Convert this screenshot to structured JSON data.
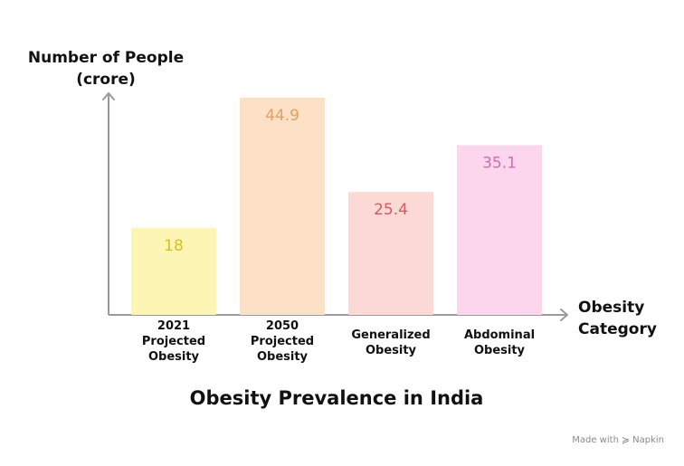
{
  "chart_data": {
    "type": "bar",
    "title": "Obesity Prevalence in India",
    "ylabel_lines": [
      "Number of People",
      "(crore)"
    ],
    "xlabel_lines": [
      "Obesity",
      "Category"
    ],
    "ylim": [
      0,
      50
    ],
    "grid": false,
    "legend": "none",
    "categories": [
      [
        "2021",
        "Projected",
        "Obesity"
      ],
      [
        "2050",
        "Projected",
        "Obesity"
      ],
      [
        "Generalized",
        "Obesity"
      ],
      [
        "Abdominal",
        "Obesity"
      ]
    ],
    "values": [
      18,
      44.9,
      25.4,
      35.1
    ],
    "value_labels": [
      "18",
      "44.9",
      "25.4",
      "35.1"
    ],
    "bar_colors": [
      "#fdf5b4",
      "#fde1c6",
      "#fdd9d6",
      "#fcd6ec"
    ],
    "label_colors": [
      "#d9bf1f",
      "#e4a061",
      "#e0565e",
      "#d66ab1"
    ],
    "axis_color": "#9a9a9a"
  },
  "footer": {
    "made_with": "Made with",
    "brand": "Napkin",
    "brand_icon": "napkin-icon"
  }
}
